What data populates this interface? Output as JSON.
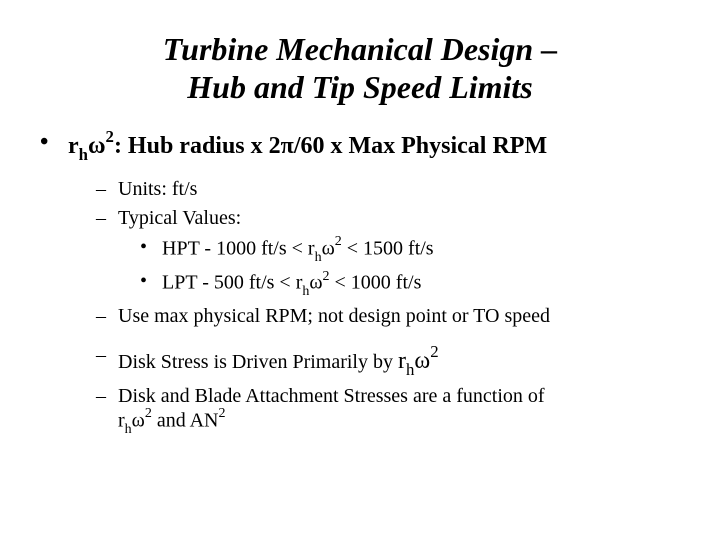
{
  "title_line1": "Turbine Mechanical Design –",
  "title_line2": "Hub and Tip Speed Limits",
  "b1_prefix": "r",
  "b1_sub": "h",
  "b1_omega": "ω",
  "b1_sup": "2",
  "b1_mid": ": Hub radius x 2",
  "b1_pi": "π",
  "b1_suffix": "/60 x Max Physical RPM",
  "b2": "Units:  ft/s",
  "b3": "Typical Values:",
  "b4_prefix": "HPT - 1000 ft/s < r",
  "b4_sub": "h",
  "b4_omega": "ω",
  "b4_sup": "2",
  "b4_suffix": " < 1500 ft/s",
  "b5_prefix": "LPT - 500 ft/s < r",
  "b5_sub": "h",
  "b5_omega": "ω",
  "b5_sup": "2",
  "b5_suffix": " < 1000 ft/s",
  "b6": "Use max physical RPM; not design point or TO speed",
  "b7_prefix": "Disk Stress is Driven Primarily by ",
  "b7_r": "r",
  "b7_sub": "h",
  "b7_omega": "ω",
  "b7_sup": "2",
  "b8_line1": "Disk and Blade Attachment Stresses are a function of",
  "b8_r": "r",
  "b8_sub": "h",
  "b8_omega": "ω",
  "b8_sup": "2",
  "b8_mid": " and AN",
  "b8_sup2": "2"
}
